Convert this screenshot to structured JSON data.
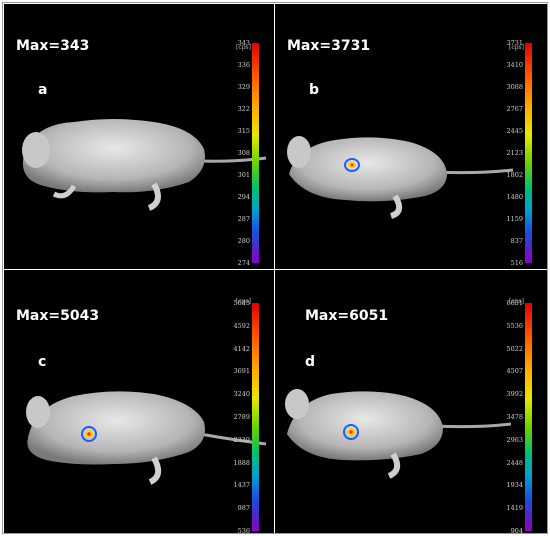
{
  "panels": [
    {
      "id": "a",
      "letter": "a",
      "max_label": "Max=343",
      "unit": "[cps]",
      "scale": [
        "343",
        "336",
        "329",
        "322",
        "315",
        "308",
        "301",
        "294",
        "287",
        "280",
        "274"
      ],
      "signal": false
    },
    {
      "id": "b",
      "letter": "b",
      "max_label": "Max=3731",
      "unit": "[cps]",
      "scale": [
        "3731",
        "3410",
        "3088",
        "2767",
        "2445",
        "2123",
        "1802",
        "1480",
        "1159",
        "837",
        "516"
      ],
      "signal": true
    },
    {
      "id": "c",
      "letter": "c",
      "max_label": "Max=5043",
      "unit": "[cps]",
      "scale": [
        "5043",
        "4592",
        "4142",
        "3691",
        "3240",
        "2789",
        "2339",
        "1888",
        "1437",
        "987",
        "536"
      ],
      "signal": true
    },
    {
      "id": "d",
      "letter": "d",
      "max_label": "Max=6051",
      "unit": "[cps]",
      "scale": [
        "6051",
        "5536",
        "5022",
        "4507",
        "3992",
        "3478",
        "2963",
        "2448",
        "1934",
        "1419",
        "904"
      ],
      "signal": true
    }
  ],
  "colors": {
    "background": "#000000",
    "mouse": "#cfcfcf",
    "signal_hot": "#ffd400",
    "signal_ring": "#1e5cff"
  }
}
